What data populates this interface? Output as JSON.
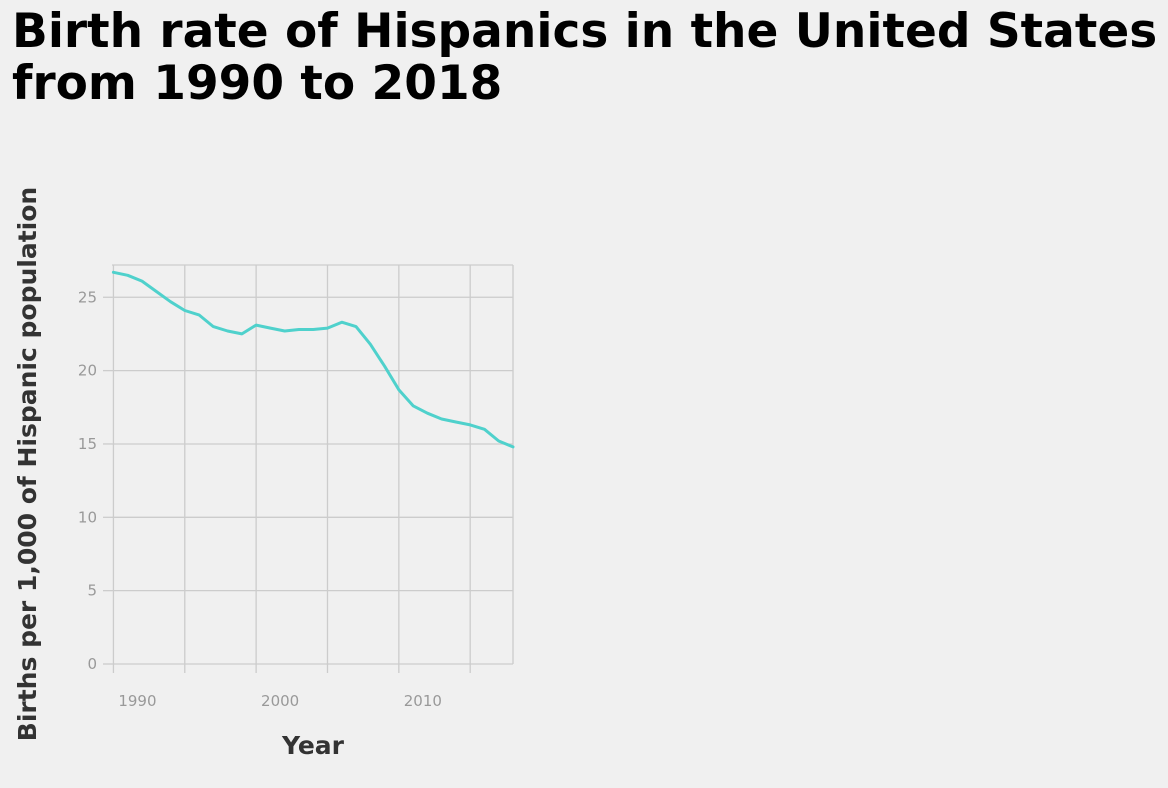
{
  "chart_data": {
    "type": "line",
    "title": "Birth rate of Hispanics in the United States from 1990 to 2018",
    "xlabel": "Year",
    "ylabel": "Births per 1,000 of Hispanic population",
    "xlim": [
      1989.9,
      2018
    ],
    "ylim": [
      0,
      27.2
    ],
    "x_ticks": [
      1990,
      1995,
      2000,
      2005,
      2010,
      2015
    ],
    "x_tick_labels": [
      "1990",
      "",
      "2000",
      "",
      "2010",
      ""
    ],
    "y_ticks": [
      0,
      5,
      10,
      15,
      20,
      25
    ],
    "y_tick_labels": [
      "0",
      "5",
      "10",
      "15",
      "20",
      "25"
    ],
    "grid": true,
    "line_color": "#4fd1cc",
    "series": [
      {
        "x": [
          1990,
          1991,
          1992,
          1993,
          1994,
          1995,
          1996,
          1997,
          1998,
          1999,
          2000,
          2001,
          2002,
          2003,
          2004,
          2005,
          2006,
          2007,
          2008,
          2009,
          2010,
          2011,
          2012,
          2013,
          2014,
          2015,
          2016,
          2017,
          2018
        ],
        "values": [
          26.7,
          26.5,
          26.1,
          25.4,
          24.7,
          24.1,
          23.8,
          23.0,
          22.7,
          22.5,
          23.1,
          22.9,
          22.7,
          22.8,
          22.8,
          22.9,
          23.3,
          23.0,
          21.8,
          20.3,
          18.7,
          17.6,
          17.1,
          16.7,
          16.5,
          16.3,
          16.0,
          15.2,
          14.8
        ]
      }
    ]
  }
}
